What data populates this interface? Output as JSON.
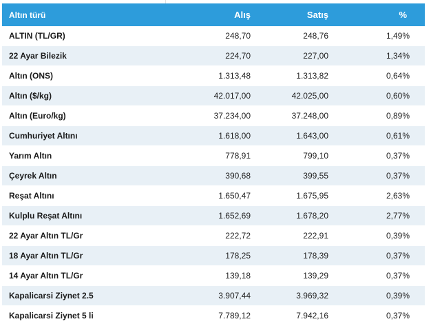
{
  "table": {
    "headers": {
      "name": "Altın türü",
      "buy": "Alış",
      "sell": "Satış",
      "pct": "%"
    },
    "rows": [
      {
        "name": "ALTIN (TL/GR)",
        "buy": "248,70",
        "sell": "248,76",
        "pct": "1,49%"
      },
      {
        "name": "22 Ayar Bilezik",
        "buy": "224,70",
        "sell": "227,00",
        "pct": "1,34%"
      },
      {
        "name": "Altın (ONS)",
        "buy": "1.313,48",
        "sell": "1.313,82",
        "pct": "0,64%"
      },
      {
        "name": "Altın ($/kg)",
        "buy": "42.017,00",
        "sell": "42.025,00",
        "pct": "0,60%"
      },
      {
        "name": "Altın (Euro/kg)",
        "buy": "37.234,00",
        "sell": "37.248,00",
        "pct": "0,89%"
      },
      {
        "name": "Cumhuriyet Altını",
        "buy": "1.618,00",
        "sell": "1.643,00",
        "pct": "0,61%"
      },
      {
        "name": "Yarım Altın",
        "buy": "778,91",
        "sell": "799,10",
        "pct": "0,37%"
      },
      {
        "name": "Çeyrek Altın",
        "buy": "390,68",
        "sell": "399,55",
        "pct": "0,37%"
      },
      {
        "name": "Reşat Altını",
        "buy": "1.650,47",
        "sell": "1.675,95",
        "pct": "2,63%"
      },
      {
        "name": "Kulplu Reşat Altını",
        "buy": "1.652,69",
        "sell": "1.678,20",
        "pct": "2,77%"
      },
      {
        "name": "22 Ayar Altın TL/Gr",
        "buy": "222,72",
        "sell": "222,91",
        "pct": "0,39%"
      },
      {
        "name": "18 Ayar Altın TL/Gr",
        "buy": "178,25",
        "sell": "178,39",
        "pct": "0,37%"
      },
      {
        "name": "14 Ayar Altın TL/Gr",
        "buy": "139,18",
        "sell": "139,29",
        "pct": "0,37%"
      },
      {
        "name": "Kapalicarsi Ziynet 2.5",
        "buy": "3.907,44",
        "sell": "3.969,32",
        "pct": "0,39%"
      },
      {
        "name": "Kapalicarsi Ziynet 5 li",
        "buy": "7.789,12",
        "sell": "7.942,16",
        "pct": "0,37%"
      }
    ]
  },
  "colors": {
    "header_bg": "#2d9cdb",
    "header_text": "#ffffff",
    "row_alt_bg": "#e8f0f6",
    "row_bg": "#ffffff"
  }
}
